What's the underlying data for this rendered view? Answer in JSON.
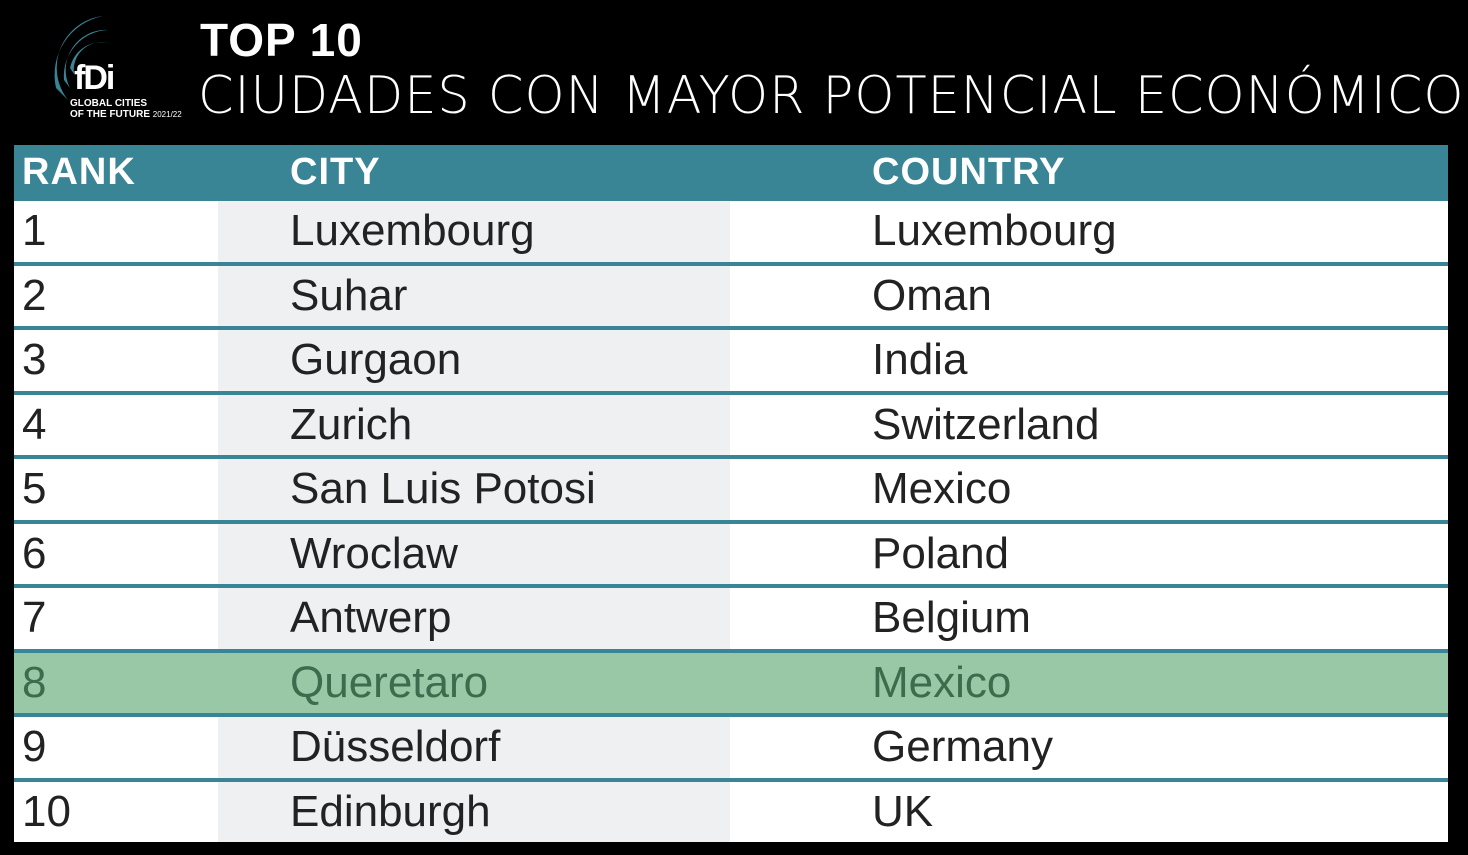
{
  "logo": {
    "brand": "fDi",
    "subtitle_line1": "GLOBAL CITIES",
    "subtitle_line2": "OF THE FUTURE",
    "year": "2021/22"
  },
  "title": {
    "line1": "TOP 10",
    "line2": "CIUDADES CON MAYOR POTENCIAL ECONÓMICO"
  },
  "table": {
    "headers": [
      "RANK",
      "CITY",
      "COUNTRY"
    ],
    "rows": [
      {
        "rank": "1",
        "city": "Luxembourg",
        "country": "Luxembourg"
      },
      {
        "rank": "2",
        "city": "Suhar",
        "country": "Oman"
      },
      {
        "rank": "3",
        "city": "Gurgaon",
        "country": "India"
      },
      {
        "rank": "4",
        "city": "Zurich",
        "country": "Switzerland"
      },
      {
        "rank": "5",
        "city": "San Luis Potosi",
        "country": "Mexico"
      },
      {
        "rank": "6",
        "city": "Wroclaw",
        "country": "Poland"
      },
      {
        "rank": "7",
        "city": "Antwerp",
        "country": "Belgium"
      },
      {
        "rank": "8",
        "city": "Queretaro",
        "country": "Mexico",
        "highlighted": true
      },
      {
        "rank": "9",
        "city": "Düsseldorf",
        "country": "Germany"
      },
      {
        "rank": "10",
        "city": "Edinburgh",
        "country": "UK"
      }
    ]
  },
  "colors": {
    "header": "#3a8595",
    "highlight": "#98c8a5"
  }
}
